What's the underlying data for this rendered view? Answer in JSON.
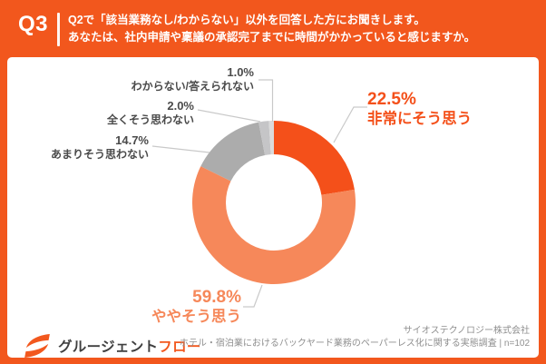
{
  "header": {
    "q_label": "Q3",
    "question_line1": "Q2で「該当業務なし/わからない」以外を回答した方にお聞きします。",
    "question_line2": "あなたは、社内申請や稟議の承認完了までに時間がかかっていると感じますか。"
  },
  "chart_data": {
    "type": "pie",
    "donut": true,
    "unit": "%",
    "start_angle_deg": 0,
    "direction": "clockwise",
    "legend_position": "callout-labels",
    "segments": [
      {
        "label": "非常にそう思う",
        "value": 22.5,
        "color": "#F4501A"
      },
      {
        "label": "ややそう思う",
        "value": 59.8,
        "color": "#F6885A"
      },
      {
        "label": "あまりそう思わない",
        "value": 14.7,
        "color": "#ACACAC"
      },
      {
        "label": "全くそう思わない",
        "value": 2.0,
        "color": "#C5C5C7"
      },
      {
        "label": "わからない/答えられない",
        "value": 1.0,
        "color": "#DBDBDB"
      }
    ]
  },
  "footer": {
    "logo_text_dark": "グルージェント",
    "logo_text_orange": "フロー",
    "source_line1": "サイオステクノロジー株式会社",
    "source_line2": "ホテル・宿泊業におけるバックヤード業務のペーパーレス化に関する実態調査 | n=102"
  },
  "colors": {
    "frame_orange": "#F2571D",
    "header_text": "#FFFFFF",
    "gray_label_text": "#4A4A4A",
    "source_text": "#8F8F8F",
    "leader_line": "#C9C9C9"
  }
}
